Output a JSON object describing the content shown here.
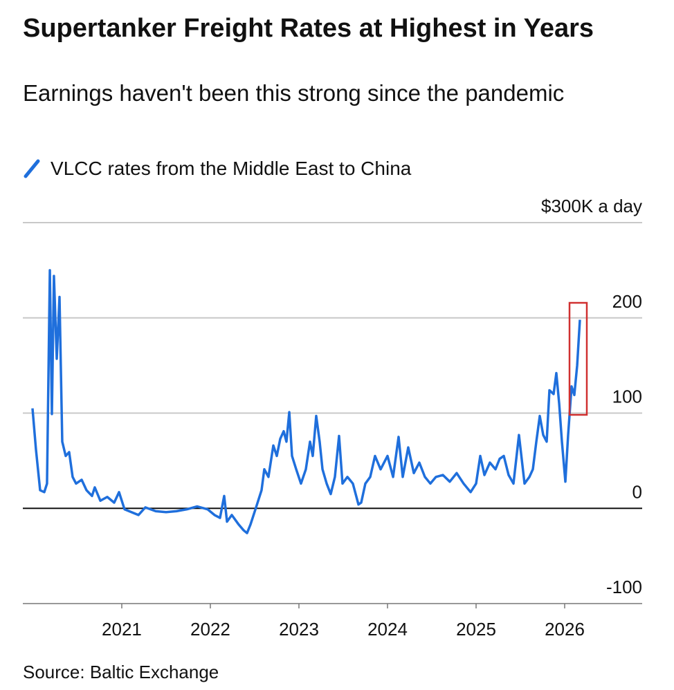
{
  "chart_data": {
    "type": "line",
    "title": "Supertanker Freight Rates at Highest in Years",
    "subtitle": "Earnings haven't been this strong since the pandemic",
    "source": "Source: Baltic Exchange",
    "xlim": [
      2019.883,
      2026.875
    ],
    "xticks": [
      2021,
      2022,
      2023,
      2024,
      2025,
      2026
    ],
    "ylim": [
      -100,
      300
    ],
    "yticks": [
      -100,
      0,
      100,
      200,
      {
        "value": 300,
        "label": "$300K a day"
      }
    ],
    "grid": true,
    "series": [
      {
        "name": "VLCC rates from the Middle East to China",
        "color": "#1f6fdc",
        "x": [
          2019.992,
          2020.031,
          2020.078,
          2020.125,
          2020.156,
          2020.188,
          2020.211,
          2020.234,
          2020.266,
          2020.297,
          2020.328,
          2020.367,
          2020.406,
          2020.445,
          2020.484,
          2020.547,
          2020.602,
          2020.664,
          2020.695,
          2020.758,
          2020.836,
          2020.914,
          2020.969,
          2021.031,
          2021.109,
          2021.188,
          2021.266,
          2021.383,
          2021.5,
          2021.617,
          2021.734,
          2021.852,
          2021.969,
          2022.047,
          2022.109,
          2022.156,
          2022.188,
          2022.242,
          2022.32,
          2022.375,
          2022.414,
          2022.453,
          2022.516,
          2022.578,
          2022.609,
          2022.656,
          2022.711,
          2022.75,
          2022.789,
          2022.828,
          2022.859,
          2022.891,
          2022.922,
          2022.969,
          2023.023,
          2023.078,
          2023.125,
          2023.156,
          2023.195,
          2023.234,
          2023.266,
          2023.313,
          2023.359,
          2023.406,
          2023.453,
          2023.492,
          2023.547,
          2023.609,
          2023.672,
          2023.703,
          2023.75,
          2023.805,
          2023.859,
          2023.922,
          2024.0,
          2024.063,
          2024.125,
          2024.172,
          2024.234,
          2024.297,
          2024.359,
          2024.422,
          2024.484,
          2024.547,
          2024.625,
          2024.703,
          2024.781,
          2024.859,
          2024.938,
          2025.0,
          2025.047,
          2025.094,
          2025.156,
          2025.219,
          2025.266,
          2025.313,
          2025.367,
          2025.422,
          2025.484,
          2025.547,
          2025.602,
          2025.641,
          2025.68,
          2025.719,
          2025.758,
          2025.797,
          2025.828,
          2025.875,
          2025.906,
          2025.938,
          2025.969,
          2026.008,
          2026.039,
          2026.078,
          2026.109,
          2026.141,
          2026.172
        ],
        "values": [
          105,
          62,
          19,
          17,
          26,
          250,
          99,
          244,
          157,
          222,
          70,
          55,
          59,
          33,
          26,
          30,
          19,
          13,
          22,
          8,
          12,
          6,
          17,
          -1,
          -4,
          -7,
          1,
          -3,
          -4,
          -3,
          -1,
          2,
          -1,
          -7,
          -10,
          13,
          -14,
          -7,
          -17,
          -23,
          -26,
          -17,
          1,
          19,
          41,
          33,
          66,
          55,
          73,
          81,
          70,
          101,
          55,
          41,
          26,
          41,
          70,
          55,
          97,
          70,
          41,
          26,
          15,
          33,
          76,
          26,
          33,
          26,
          4,
          6,
          26,
          33,
          55,
          41,
          55,
          33,
          75,
          33,
          64,
          37,
          48,
          33,
          26,
          33,
          35,
          28,
          37,
          26,
          17,
          26,
          55,
          35,
          48,
          41,
          52,
          55,
          35,
          26,
          77,
          26,
          33,
          41,
          70,
          97,
          77,
          70,
          124,
          120,
          142,
          110,
          70,
          28,
          77,
          128,
          119,
          150,
          198
        ]
      }
    ]
  }
}
